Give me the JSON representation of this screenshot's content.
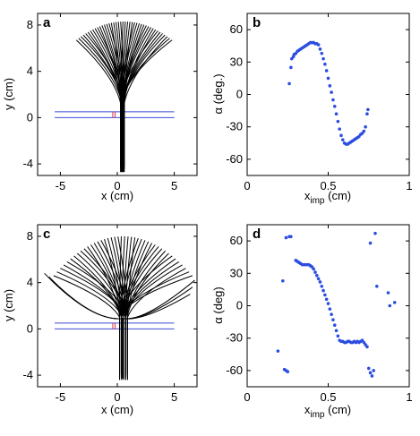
{
  "chart_data": [
    {
      "panel": "a",
      "type": "line",
      "xlabel": "x (cm)",
      "ylabel": "y (cm)",
      "xlim": [
        -7,
        7
      ],
      "ylim": [
        -5,
        9
      ],
      "xticks": [
        -5,
        0,
        5
      ],
      "yticks": [
        -4,
        0,
        4,
        8
      ],
      "hlines": [
        0,
        0.5
      ],
      "fan": {
        "count": 42,
        "stem_x": [
          0.3,
          0.6
        ],
        "stem_bottom": -4.7,
        "junction_y": 1.2,
        "tip_y": 8.3,
        "tip_x_range": [
          -3.6,
          4.8
        ]
      }
    },
    {
      "panel": "b",
      "type": "scatter",
      "xlabel": "x_imp (cm)",
      "ylabel": "α (deg.)",
      "xlim": [
        0,
        1
      ],
      "ylim": [
        -75,
        75
      ],
      "xticks": [
        0,
        0.5,
        1
      ],
      "yticks": [
        -60,
        -30,
        0,
        30,
        60
      ],
      "points": [
        [
          0.26,
          10
        ],
        [
          0.27,
          25
        ],
        [
          0.275,
          33
        ],
        [
          0.285,
          35
        ],
        [
          0.29,
          37
        ],
        [
          0.3,
          38
        ],
        [
          0.31,
          40
        ],
        [
          0.32,
          41
        ],
        [
          0.33,
          42
        ],
        [
          0.34,
          43
        ],
        [
          0.35,
          44
        ],
        [
          0.36,
          45
        ],
        [
          0.37,
          46
        ],
        [
          0.38,
          47
        ],
        [
          0.39,
          48
        ],
        [
          0.4,
          48
        ],
        [
          0.41,
          48
        ],
        [
          0.42,
          47
        ],
        [
          0.43,
          47
        ],
        [
          0.44,
          46
        ],
        [
          0.45,
          42
        ],
        [
          0.46,
          38
        ],
        [
          0.47,
          33
        ],
        [
          0.48,
          28
        ],
        [
          0.49,
          22
        ],
        [
          0.5,
          15
        ],
        [
          0.51,
          8
        ],
        [
          0.52,
          2
        ],
        [
          0.53,
          -5
        ],
        [
          0.54,
          -11
        ],
        [
          0.55,
          -18
        ],
        [
          0.56,
          -25
        ],
        [
          0.57,
          -32
        ],
        [
          0.58,
          -38
        ],
        [
          0.59,
          -42
        ],
        [
          0.6,
          -45
        ],
        [
          0.61,
          -46
        ],
        [
          0.62,
          -46
        ],
        [
          0.63,
          -45
        ],
        [
          0.64,
          -44
        ],
        [
          0.65,
          -43
        ],
        [
          0.66,
          -42
        ],
        [
          0.67,
          -41
        ],
        [
          0.68,
          -40
        ],
        [
          0.69,
          -39
        ],
        [
          0.7,
          -37
        ],
        [
          0.71,
          -36
        ],
        [
          0.72,
          -34
        ],
        [
          0.73,
          -30
        ],
        [
          0.74,
          -18
        ],
        [
          0.745,
          -14
        ]
      ]
    },
    {
      "panel": "c",
      "type": "line",
      "xlabel": "x (cm)",
      "ylabel": "y (cm)",
      "xlim": [
        -7,
        7
      ],
      "ylim": [
        -5,
        9
      ],
      "xticks": [
        -5,
        0,
        5
      ],
      "yticks": [
        -4,
        0,
        4,
        8
      ],
      "hlines": [
        0,
        0.5
      ],
      "fan": {
        "count": 42,
        "stem_x": [
          0.2,
          0.9
        ],
        "stem_bottom": -4.4,
        "junction_y": 1.0,
        "tip_y": 8.0,
        "tip_x_range": [
          -5.6,
          6.6
        ]
      }
    },
    {
      "panel": "d",
      "type": "scatter",
      "xlabel": "x_imp (cm)",
      "ylabel": "α (deg)",
      "xlim": [
        0,
        1
      ],
      "ylim": [
        -75,
        75
      ],
      "xticks": [
        0,
        0.5,
        1
      ],
      "yticks": [
        -60,
        -30,
        0,
        30,
        60
      ],
      "points": [
        [
          0.19,
          -42
        ],
        [
          0.22,
          23
        ],
        [
          0.23,
          -59
        ],
        [
          0.24,
          -60
        ],
        [
          0.25,
          -61
        ],
        [
          0.24,
          63
        ],
        [
          0.26,
          64
        ],
        [
          0.27,
          64
        ],
        [
          0.3,
          42
        ],
        [
          0.31,
          41
        ],
        [
          0.32,
          40
        ],
        [
          0.33,
          39
        ],
        [
          0.34,
          38
        ],
        [
          0.35,
          38
        ],
        [
          0.36,
          38
        ],
        [
          0.37,
          38
        ],
        [
          0.38,
          38
        ],
        [
          0.39,
          37
        ],
        [
          0.4,
          36
        ],
        [
          0.41,
          34
        ],
        [
          0.42,
          31
        ],
        [
          0.43,
          28
        ],
        [
          0.44,
          25
        ],
        [
          0.45,
          22
        ],
        [
          0.46,
          18
        ],
        [
          0.47,
          14
        ],
        [
          0.48,
          10
        ],
        [
          0.49,
          6
        ],
        [
          0.5,
          2
        ],
        [
          0.51,
          -3
        ],
        [
          0.52,
          -8
        ],
        [
          0.53,
          -13
        ],
        [
          0.54,
          -18
        ],
        [
          0.55,
          -23
        ],
        [
          0.56,
          -28
        ],
        [
          0.57,
          -32
        ],
        [
          0.58,
          -33
        ],
        [
          0.59,
          -33
        ],
        [
          0.6,
          -34
        ],
        [
          0.61,
          -34
        ],
        [
          0.62,
          -33
        ],
        [
          0.63,
          -33
        ],
        [
          0.64,
          -34
        ],
        [
          0.65,
          -34
        ],
        [
          0.66,
          -33
        ],
        [
          0.67,
          -34
        ],
        [
          0.68,
          -33
        ],
        [
          0.69,
          -34
        ],
        [
          0.7,
          -33
        ],
        [
          0.71,
          -32
        ],
        [
          0.72,
          -34
        ],
        [
          0.73,
          -36
        ],
        [
          0.74,
          -38
        ],
        [
          0.75,
          -58
        ],
        [
          0.76,
          -62
        ],
        [
          0.77,
          -65
        ],
        [
          0.78,
          -60
        ],
        [
          0.76,
          58
        ],
        [
          0.79,
          67
        ],
        [
          0.8,
          18
        ],
        [
          0.87,
          12
        ],
        [
          0.88,
          0
        ],
        [
          0.91,
          3
        ]
      ]
    }
  ],
  "panel_labels": [
    "a",
    "b",
    "c",
    "d"
  ],
  "labels": {
    "a": {
      "x": "x (cm)",
      "y": "y (cm)"
    },
    "b": {
      "x_main": "x",
      "x_sub": "imp",
      "x_unit": " (cm)",
      "y": "α (deg.)"
    },
    "c": {
      "x": "x (cm)",
      "y": "y (cm)"
    },
    "d": {
      "x_main": "x",
      "x_sub": "imp",
      "x_unit": " (cm)",
      "y": "α (deg)"
    }
  },
  "colors": {
    "points": "#2b4de0",
    "lines": "#000000",
    "hlines": "#3b49d8",
    "marks": "#d8344a"
  }
}
